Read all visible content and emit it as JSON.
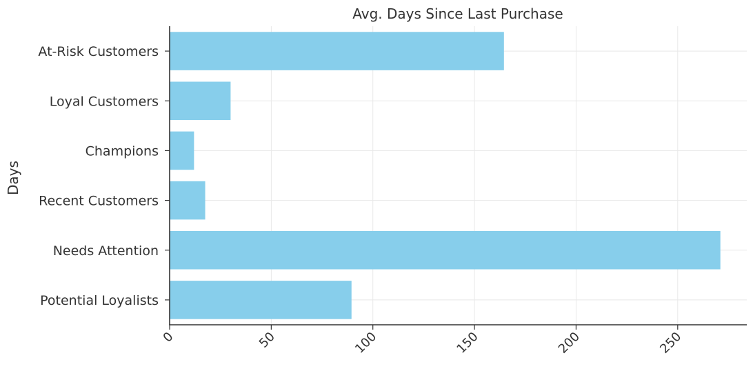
{
  "chart_data": {
    "type": "bar",
    "orientation": "horizontal",
    "title": "Avg. Days Since Last Purchase",
    "xlabel": "",
    "ylabel": "Days",
    "categories": [
      "At-Risk Customers",
      "Loyal Customers",
      "Champions",
      "Recent Customers",
      "Needs Attention",
      "Potential Loyalists"
    ],
    "values": [
      164.5,
      30,
      12,
      17.5,
      271,
      89.5
    ],
    "xlim": [
      0,
      284
    ],
    "xticks": [
      0,
      50,
      100,
      150,
      200,
      250
    ],
    "xtick_labels": [
      "0",
      "50",
      "100",
      "150",
      "200",
      "250"
    ],
    "xtick_rotation": -45,
    "bar_color": "#87CEEB",
    "grid": true
  }
}
